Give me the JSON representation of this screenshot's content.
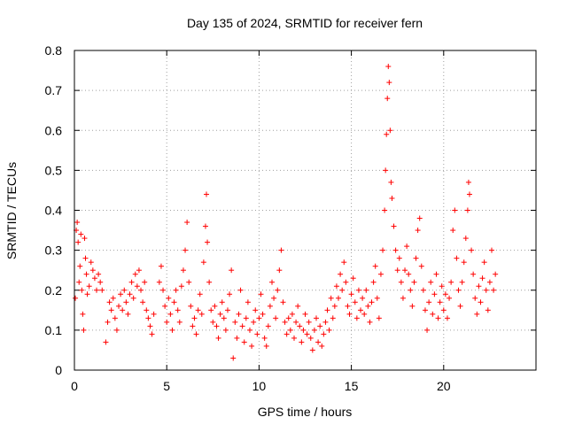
{
  "chart_data": {
    "type": "scatter",
    "title": "Day 135 of 2024, SRMTID for receiver fern",
    "xlabel": "GPS time / hours",
    "ylabel": "SRMTID / TECUs",
    "xlim": [
      0,
      25
    ],
    "ylim": [
      0,
      0.8
    ],
    "x_ticks": [
      0,
      5,
      10,
      15,
      20
    ],
    "y_ticks": [
      0,
      0.1,
      0.2,
      0.3,
      0.4,
      0.5,
      0.6,
      0.7,
      0.8
    ],
    "x_tick_labels": [
      "0",
      "5",
      "10",
      "15",
      "20"
    ],
    "y_tick_labels": [
      "0",
      "0.1",
      "0.2",
      "0.3",
      "0.4",
      "0.5",
      "0.6",
      "0.7",
      "0.8"
    ],
    "grid": true,
    "marker": "+",
    "color": "#ff0000",
    "series": [
      {
        "name": "SRMTID",
        "points": [
          [
            0.05,
            0.18
          ],
          [
            0.1,
            0.35
          ],
          [
            0.15,
            0.37
          ],
          [
            0.2,
            0.32
          ],
          [
            0.25,
            0.22
          ],
          [
            0.3,
            0.26
          ],
          [
            0.35,
            0.34
          ],
          [
            0.4,
            0.2
          ],
          [
            0.45,
            0.14
          ],
          [
            0.5,
            0.1
          ],
          [
            0.55,
            0.33
          ],
          [
            0.6,
            0.28
          ],
          [
            0.65,
            0.24
          ],
          [
            0.7,
            0.19
          ],
          [
            0.8,
            0.21
          ],
          [
            0.9,
            0.27
          ],
          [
            1.0,
            0.25
          ],
          [
            1.1,
            0.23
          ],
          [
            1.2,
            0.2
          ],
          [
            1.3,
            0.24
          ],
          [
            1.4,
            0.22
          ],
          [
            1.5,
            0.2
          ],
          [
            1.7,
            0.07
          ],
          [
            1.8,
            0.12
          ],
          [
            1.9,
            0.17
          ],
          [
            2.0,
            0.15
          ],
          [
            2.1,
            0.18
          ],
          [
            2.2,
            0.13
          ],
          [
            2.3,
            0.1
          ],
          [
            2.4,
            0.16
          ],
          [
            2.5,
            0.19
          ],
          [
            2.6,
            0.15
          ],
          [
            2.7,
            0.2
          ],
          [
            2.8,
            0.17
          ],
          [
            2.9,
            0.14
          ],
          [
            3.0,
            0.19
          ],
          [
            3.1,
            0.22
          ],
          [
            3.2,
            0.18
          ],
          [
            3.3,
            0.24
          ],
          [
            3.4,
            0.21
          ],
          [
            3.5,
            0.25
          ],
          [
            3.6,
            0.2
          ],
          [
            3.7,
            0.17
          ],
          [
            3.8,
            0.22
          ],
          [
            3.9,
            0.15
          ],
          [
            4.0,
            0.13
          ],
          [
            4.1,
            0.11
          ],
          [
            4.2,
            0.09
          ],
          [
            4.3,
            0.14
          ],
          [
            4.6,
            0.22
          ],
          [
            4.7,
            0.26
          ],
          [
            4.8,
            0.2
          ],
          [
            4.9,
            0.16
          ],
          [
            5.0,
            0.12
          ],
          [
            5.1,
            0.18
          ],
          [
            5.2,
            0.14
          ],
          [
            5.3,
            0.1
          ],
          [
            5.4,
            0.17
          ],
          [
            5.5,
            0.2
          ],
          [
            5.6,
            0.15
          ],
          [
            5.7,
            0.12
          ],
          [
            5.8,
            0.21
          ],
          [
            5.9,
            0.25
          ],
          [
            6.0,
            0.3
          ],
          [
            6.1,
            0.37
          ],
          [
            6.2,
            0.22
          ],
          [
            6.3,
            0.16
          ],
          [
            6.4,
            0.11
          ],
          [
            6.5,
            0.13
          ],
          [
            6.6,
            0.09
          ],
          [
            6.7,
            0.15
          ],
          [
            6.8,
            0.19
          ],
          [
            6.9,
            0.14
          ],
          [
            7.0,
            0.27
          ],
          [
            7.1,
            0.36
          ],
          [
            7.15,
            0.44
          ],
          [
            7.2,
            0.32
          ],
          [
            7.3,
            0.22
          ],
          [
            7.4,
            0.15
          ],
          [
            7.5,
            0.12
          ],
          [
            7.6,
            0.16
          ],
          [
            7.7,
            0.11
          ],
          [
            7.8,
            0.08
          ],
          [
            7.9,
            0.14
          ],
          [
            8.0,
            0.17
          ],
          [
            8.1,
            0.13
          ],
          [
            8.2,
            0.1
          ],
          [
            8.3,
            0.15
          ],
          [
            8.4,
            0.19
          ],
          [
            8.5,
            0.25
          ],
          [
            8.6,
            0.03
          ],
          [
            8.7,
            0.12
          ],
          [
            8.8,
            0.08
          ],
          [
            8.9,
            0.14
          ],
          [
            9.0,
            0.2
          ],
          [
            9.1,
            0.11
          ],
          [
            9.2,
            0.07
          ],
          [
            9.3,
            0.13
          ],
          [
            9.4,
            0.17
          ],
          [
            9.5,
            0.1
          ],
          [
            9.6,
            0.06
          ],
          [
            9.7,
            0.12
          ],
          [
            9.8,
            0.15
          ],
          [
            9.9,
            0.09
          ],
          [
            10.0,
            0.13
          ],
          [
            10.1,
            0.19
          ],
          [
            10.2,
            0.14
          ],
          [
            10.3,
            0.08
          ],
          [
            10.4,
            0.06
          ],
          [
            10.5,
            0.11
          ],
          [
            10.6,
            0.16
          ],
          [
            10.7,
            0.22
          ],
          [
            10.8,
            0.18
          ],
          [
            10.9,
            0.13
          ],
          [
            11.0,
            0.2
          ],
          [
            11.1,
            0.25
          ],
          [
            11.2,
            0.3
          ],
          [
            11.3,
            0.17
          ],
          [
            11.4,
            0.12
          ],
          [
            11.5,
            0.09
          ],
          [
            11.6,
            0.13
          ],
          [
            11.7,
            0.1
          ],
          [
            11.8,
            0.14
          ],
          [
            11.9,
            0.08
          ],
          [
            12.0,
            0.12
          ],
          [
            12.1,
            0.16
          ],
          [
            12.2,
            0.11
          ],
          [
            12.3,
            0.07
          ],
          [
            12.4,
            0.1
          ],
          [
            12.5,
            0.14
          ],
          [
            12.6,
            0.09
          ],
          [
            12.7,
            0.12
          ],
          [
            12.8,
            0.08
          ],
          [
            12.9,
            0.05
          ],
          [
            13.0,
            0.1
          ],
          [
            13.1,
            0.13
          ],
          [
            13.2,
            0.07
          ],
          [
            13.3,
            0.11
          ],
          [
            13.4,
            0.06
          ],
          [
            13.5,
            0.09
          ],
          [
            13.6,
            0.12
          ],
          [
            13.7,
            0.15
          ],
          [
            13.8,
            0.1
          ],
          [
            13.9,
            0.18
          ],
          [
            14.0,
            0.13
          ],
          [
            14.1,
            0.16
          ],
          [
            14.2,
            0.21
          ],
          [
            14.3,
            0.18
          ],
          [
            14.4,
            0.24
          ],
          [
            14.5,
            0.2
          ],
          [
            14.6,
            0.27
          ],
          [
            14.7,
            0.22
          ],
          [
            14.8,
            0.16
          ],
          [
            14.9,
            0.14
          ],
          [
            15.0,
            0.19
          ],
          [
            15.1,
            0.23
          ],
          [
            15.2,
            0.17
          ],
          [
            15.3,
            0.13
          ],
          [
            15.4,
            0.2
          ],
          [
            15.5,
            0.15
          ],
          [
            15.6,
            0.18
          ],
          [
            15.7,
            0.14
          ],
          [
            15.8,
            0.2
          ],
          [
            15.9,
            0.16
          ],
          [
            16.0,
            0.12
          ],
          [
            16.1,
            0.17
          ],
          [
            16.2,
            0.22
          ],
          [
            16.3,
            0.26
          ],
          [
            16.4,
            0.18
          ],
          [
            16.5,
            0.13
          ],
          [
            16.6,
            0.24
          ],
          [
            16.7,
            0.3
          ],
          [
            16.8,
            0.4
          ],
          [
            16.85,
            0.5
          ],
          [
            16.9,
            0.59
          ],
          [
            16.95,
            0.68
          ],
          [
            17.0,
            0.76
          ],
          [
            17.05,
            0.72
          ],
          [
            17.1,
            0.6
          ],
          [
            17.15,
            0.47
          ],
          [
            17.2,
            0.43
          ],
          [
            17.3,
            0.36
          ],
          [
            17.4,
            0.3
          ],
          [
            17.5,
            0.25
          ],
          [
            17.6,
            0.28
          ],
          [
            17.7,
            0.22
          ],
          [
            17.8,
            0.18
          ],
          [
            17.9,
            0.25
          ],
          [
            18.0,
            0.31
          ],
          [
            18.1,
            0.24
          ],
          [
            18.2,
            0.2
          ],
          [
            18.3,
            0.16
          ],
          [
            18.4,
            0.22
          ],
          [
            18.5,
            0.28
          ],
          [
            18.6,
            0.35
          ],
          [
            18.7,
            0.38
          ],
          [
            18.8,
            0.26
          ],
          [
            18.9,
            0.2
          ],
          [
            19.0,
            0.15
          ],
          [
            19.1,
            0.1
          ],
          [
            19.2,
            0.17
          ],
          [
            19.3,
            0.22
          ],
          [
            19.4,
            0.14
          ],
          [
            19.5,
            0.19
          ],
          [
            19.6,
            0.24
          ],
          [
            19.7,
            0.13
          ],
          [
            19.8,
            0.17
          ],
          [
            19.9,
            0.21
          ],
          [
            20.0,
            0.15
          ],
          [
            20.1,
            0.19
          ],
          [
            20.2,
            0.13
          ],
          [
            20.3,
            0.18
          ],
          [
            20.4,
            0.22
          ],
          [
            20.5,
            0.35
          ],
          [
            20.6,
            0.4
          ],
          [
            20.7,
            0.28
          ],
          [
            20.8,
            0.2
          ],
          [
            20.9,
            0.16
          ],
          [
            21.0,
            0.22
          ],
          [
            21.1,
            0.27
          ],
          [
            21.2,
            0.33
          ],
          [
            21.3,
            0.4
          ],
          [
            21.35,
            0.47
          ],
          [
            21.4,
            0.44
          ],
          [
            21.5,
            0.3
          ],
          [
            21.6,
            0.24
          ],
          [
            21.7,
            0.18
          ],
          [
            21.8,
            0.14
          ],
          [
            21.9,
            0.21
          ],
          [
            22.0,
            0.17
          ],
          [
            22.1,
            0.23
          ],
          [
            22.2,
            0.27
          ],
          [
            22.3,
            0.2
          ],
          [
            22.4,
            0.15
          ],
          [
            22.5,
            0.22
          ],
          [
            22.6,
            0.3
          ],
          [
            22.7,
            0.2
          ],
          [
            22.8,
            0.24
          ]
        ]
      }
    ]
  }
}
